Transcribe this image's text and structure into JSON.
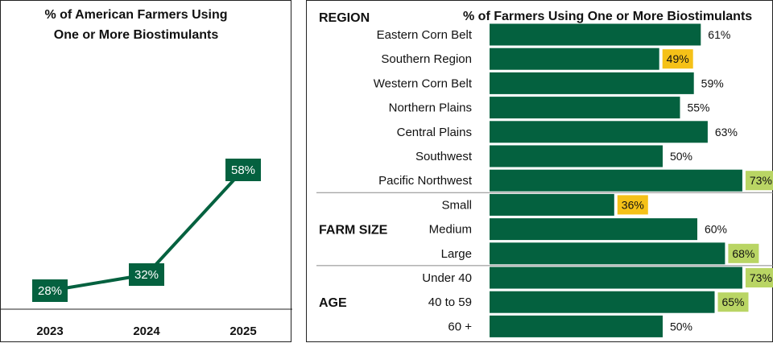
{
  "colors": {
    "bar": "#04613f",
    "line": "#04613f",
    "highlight_low": "#f5c118",
    "highlight_high": "#b9d564"
  },
  "chart_data": [
    {
      "type": "line",
      "title": [
        "% of American Farmers Using",
        "One or More Biostimulants"
      ],
      "x": [
        "2023",
        "2024",
        "2025"
      ],
      "values": [
        28,
        32,
        58
      ],
      "point_labels": [
        "28%",
        "32%",
        "58%"
      ],
      "ylim": [
        0,
        100
      ],
      "grid": false,
      "legend": "none"
    },
    {
      "type": "bar",
      "orientation": "horizontal",
      "title": "% of Farmers Using One or More Biostimulants",
      "xlim": [
        0,
        100
      ],
      "groups": [
        {
          "name": "REGION",
          "categories": [
            "Eastern Corn Belt",
            "Southern Region",
            "Western Corn Belt",
            "Northern Plains",
            "Central Plains",
            "Southwest",
            "Pacific Northwest"
          ],
          "values": [
            61,
            49,
            59,
            55,
            63,
            50,
            73
          ],
          "labels": [
            "61%",
            "49%",
            "59%",
            "55%",
            "63%",
            "50%",
            "73%"
          ],
          "highlight": [
            "none",
            "low",
            "none",
            "none",
            "none",
            "none",
            "high"
          ]
        },
        {
          "name": "FARM SIZE",
          "categories": [
            "Small",
            "Medium",
            "Large"
          ],
          "values": [
            36,
            60,
            68
          ],
          "labels": [
            "36%",
            "60%",
            "68%"
          ],
          "highlight": [
            "low",
            "none",
            "high"
          ]
        },
        {
          "name": "AGE",
          "categories": [
            "Under 40",
            "40 to 59",
            "60 +"
          ],
          "values": [
            73,
            65,
            50
          ],
          "labels": [
            "73%",
            "65%",
            "50%"
          ],
          "highlight": [
            "high",
            "high",
            "none"
          ]
        }
      ]
    }
  ]
}
